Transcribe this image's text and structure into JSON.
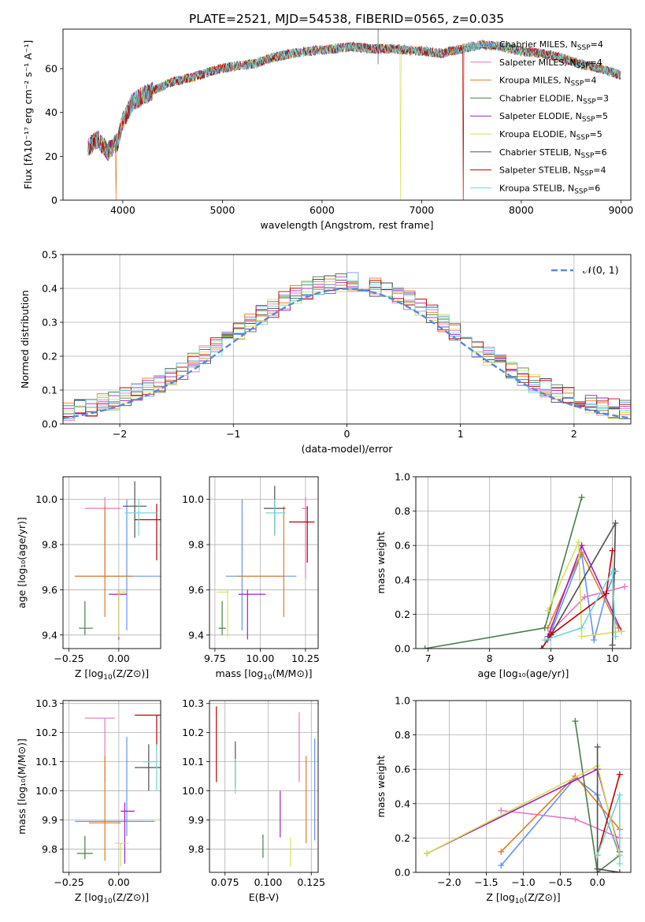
{
  "figure_title": "PLATE=2521, MJD=54538, FIBERID=0565, z=0.035",
  "model_colors": [
    "#6495ed",
    "#e377c2",
    "#e07b20",
    "#4a7d4a",
    "#a020c0",
    "#d4e157",
    "#505050",
    "#c00000",
    "#70d6d6"
  ],
  "chart_data": [
    {
      "id": "spectrum",
      "type": "line",
      "xlabel": "wavelength [Angstrom, rest frame]",
      "ylabel": "Flux [fλ10⁻¹⁷ erg cm⁻² s⁻¹ A⁻¹]",
      "xlim": [
        3400,
        9100
      ],
      "ylim": [
        0,
        78
      ],
      "xticks": [
        4000,
        5000,
        6000,
        7000,
        8000,
        9000
      ],
      "yticks": [
        0,
        20,
        40,
        60
      ],
      "legend_position": "right",
      "series": [
        {
          "name": "Chabrier MILES, N_SSP=4",
          "label_main": "Chabrier MILES, N",
          "label_sub": "SSP",
          "label_end": "=4"
        },
        {
          "name": "Salpeter MILES, N_SSP=4",
          "label_main": "Salpeter MILES, N",
          "label_sub": "SSP",
          "label_end": "=4"
        },
        {
          "name": "Kroupa MILES, N_SSP=4",
          "label_main": "Kroupa MILES, N",
          "label_sub": "SSP",
          "label_end": "=4"
        },
        {
          "name": "Chabrier ELODIE, N_SSP=3",
          "label_main": "Chabrier ELODIE, N",
          "label_sub": "SSP",
          "label_end": "=3"
        },
        {
          "name": "Salpeter ELODIE, N_SSP=5",
          "label_main": "Salpeter ELODIE, N",
          "label_sub": "SSP",
          "label_end": "=5"
        },
        {
          "name": "Kroupa ELODIE, N_SSP=5",
          "label_main": "Kroupa ELODIE, N",
          "label_sub": "SSP",
          "label_end": "=5"
        },
        {
          "name": "Chabrier STELIB, N_SSP=6",
          "label_main": "Chabrier STELIB, N",
          "label_sub": "SSP",
          "label_end": "=6"
        },
        {
          "name": "Salpeter STELIB, N_SSP=4",
          "label_main": "Salpeter STELIB, N",
          "label_sub": "SSP",
          "label_end": "=4"
        },
        {
          "name": "Kroupa STELIB, N_SSP=6",
          "label_main": "Kroupa STELIB, N",
          "label_sub": "SSP",
          "label_end": "=6"
        }
      ],
      "continuum": [
        [
          3650,
          24
        ],
        [
          3750,
          28
        ],
        [
          3850,
          22
        ],
        [
          3950,
          27
        ],
        [
          4000,
          36
        ],
        [
          4100,
          45
        ],
        [
          4300,
          50
        ],
        [
          4500,
          54
        ],
        [
          4700,
          56
        ],
        [
          4900,
          59
        ],
        [
          5100,
          61
        ],
        [
          5300,
          62
        ],
        [
          5500,
          65
        ],
        [
          5700,
          67
        ],
        [
          5900,
          68
        ],
        [
          6100,
          69
        ],
        [
          6300,
          70
        ],
        [
          6500,
          69
        ],
        [
          6700,
          69
        ],
        [
          7000,
          68
        ],
        [
          7200,
          67
        ],
        [
          7400,
          69
        ],
        [
          7600,
          71
        ],
        [
          7800,
          70
        ],
        [
          8000,
          68
        ],
        [
          8200,
          67
        ],
        [
          8400,
          65
        ],
        [
          8600,
          62
        ],
        [
          8800,
          60
        ],
        [
          9000,
          57
        ]
      ],
      "dropouts": [
        {
          "x": 3930,
          "series": 2
        },
        {
          "x": 6790,
          "series": 5
        },
        {
          "x": 7420,
          "series": 7
        }
      ],
      "spike": {
        "x": 6563,
        "y": 78
      }
    },
    {
      "id": "residuals",
      "type": "histogram",
      "xlabel": "(data-model)/error",
      "ylabel": "Normed distribution",
      "xlim": [
        -2.5,
        2.5
      ],
      "ylim": [
        0,
        0.5
      ],
      "xticks": [
        -2,
        -1,
        0,
        1,
        2
      ],
      "yticks": [
        0,
        0.1,
        0.2,
        0.3,
        0.4,
        0.5
      ],
      "bin_width": 0.1,
      "reference": {
        "name": "N(0,1)",
        "label": "𝒩(0, 1)",
        "mu": 0,
        "sigma": 1
      },
      "legend_position": "top-right"
    },
    {
      "id": "age-vs-Z",
      "type": "errorbar",
      "xlabel_main": "Z [log",
      "xlabel_sub": "10",
      "xlabel_end": "(Z/Z⊙)]",
      "ylabel": "age  [log₁₀(age/yr)]",
      "xlim": [
        -0.28,
        0.21
      ],
      "ylim": [
        9.34,
        10.1
      ],
      "xticks": [
        -0.25,
        0.0
      ],
      "yticks": [
        9.4,
        9.6,
        9.8,
        10.0
      ],
      "points": [
        {
          "x": 0.04,
          "y": 9.66,
          "xerr": [
            0.26,
            0.19
          ],
          "yerr": [
            0.24,
            0.34
          ]
        },
        {
          "x": -0.07,
          "y": 9.96,
          "xerr": [
            0.1,
            0.08
          ],
          "yerr": [
            0.31,
            0.05
          ]
        },
        {
          "x": -0.07,
          "y": 9.66,
          "xerr": [
            0.15,
            0.14
          ],
          "yerr": [
            0.18,
            0.31
          ]
        },
        {
          "x": -0.17,
          "y": 9.43,
          "xerr": [
            0.03,
            0.04
          ],
          "yerr": [
            0.03,
            0.12
          ]
        },
        {
          "x": 0.0,
          "y": 9.58,
          "xerr": [
            0.05,
            0.04
          ],
          "yerr": [
            0.2,
            0.02
          ]
        },
        {
          "x": 0.0,
          "y": 9.59,
          "xerr": [
            0.01,
            0.04
          ],
          "yerr": [
            0.2,
            0.01
          ]
        },
        {
          "x": 0.08,
          "y": 9.97,
          "xerr": [
            0.06,
            0.06
          ],
          "yerr": [
            0.14,
            0.11
          ]
        },
        {
          "x": 0.19,
          "y": 9.91,
          "xerr": [
            0.11,
            0.02
          ],
          "yerr": [
            0.18,
            0.07
          ]
        },
        {
          "x": 0.1,
          "y": 9.94,
          "xerr": [
            0.07,
            0.09
          ],
          "yerr": [
            0.1,
            0.06
          ]
        }
      ]
    },
    {
      "id": "age-vs-mass",
      "type": "errorbar",
      "xlabel_main": "mass [log",
      "xlabel_sub": "10",
      "xlabel_end": "(M/M⊙)]",
      "xlim": [
        9.72,
        10.32
      ],
      "ylim": [
        9.34,
        10.1
      ],
      "xticks": [
        9.75,
        10.0,
        10.25
      ],
      "yticks": [
        9.4,
        9.6,
        9.8,
        10.0
      ],
      "points": [
        {
          "x": 9.9,
          "y": 9.66,
          "xerr": [
            0.09,
            0.3
          ],
          "yerr": [
            0.24,
            0.34
          ]
        },
        {
          "x": 10.25,
          "y": 9.96,
          "xerr": [
            0.02,
            0.01
          ],
          "yerr": [
            0.31,
            0.05
          ]
        },
        {
          "x": 10.13,
          "y": 9.66,
          "xerr": [
            0.26,
            0.0
          ],
          "yerr": [
            0.18,
            0.31
          ]
        },
        {
          "x": 9.79,
          "y": 9.43,
          "xerr": [
            0.02,
            0.02
          ],
          "yerr": [
            0.03,
            0.12
          ]
        },
        {
          "x": 9.93,
          "y": 9.58,
          "xerr": [
            0.05,
            0.1
          ],
          "yerr": [
            0.2,
            0.02
          ]
        },
        {
          "x": 9.82,
          "y": 9.59,
          "xerr": [
            0.06,
            0.0
          ],
          "yerr": [
            0.2,
            0.01
          ]
        },
        {
          "x": 10.08,
          "y": 9.96,
          "xerr": [
            0.06,
            0.06
          ],
          "yerr": [
            0.12,
            0.1
          ]
        },
        {
          "x": 10.26,
          "y": 9.9,
          "xerr": [
            0.1,
            0.04
          ],
          "yerr": [
            0.18,
            0.07
          ]
        },
        {
          "x": 10.08,
          "y": 9.94,
          "xerr": [
            0.05,
            0.06
          ],
          "yerr": [
            0.1,
            0.06
          ]
        }
      ]
    },
    {
      "id": "weight-vs-age",
      "type": "line",
      "xlabel": "age  [log₁₀(age/yr)]",
      "ylabel": "mass weight",
      "xlim": [
        6.8,
        10.3
      ],
      "ylim": [
        0,
        1
      ],
      "xticks": [
        7,
        8,
        9,
        10
      ],
      "yticks": [
        0.0,
        0.2,
        0.4,
        0.6,
        0.8,
        1.0
      ],
      "series": [
        [
          [
            8.95,
            0.05
          ],
          [
            9.5,
            0.55
          ],
          [
            9.7,
            0.05
          ],
          [
            9.9,
            0.32
          ],
          [
            10.05,
            0.45
          ]
        ],
        [
          [
            9.0,
            0.1
          ],
          [
            9.55,
            0.3
          ],
          [
            10.2,
            0.36
          ]
        ],
        [
          [
            8.95,
            0.12
          ],
          [
            9.5,
            0.56
          ],
          [
            10.1,
            0.12
          ]
        ],
        [
          [
            6.95,
            0.0
          ],
          [
            8.9,
            0.12
          ],
          [
            9.5,
            0.88
          ]
        ],
        [
          [
            8.95,
            0.07
          ],
          [
            9.5,
            0.6
          ],
          [
            10.15,
            0.1
          ]
        ],
        [
          [
            8.95,
            0.22
          ],
          [
            9.45,
            0.62
          ],
          [
            9.5,
            0.07
          ],
          [
            10.15,
            0.1
          ]
        ],
        [
          [
            8.85,
            0.0
          ],
          [
            9.0,
            0.08
          ],
          [
            10.05,
            0.73
          ],
          [
            10.0,
            0.02
          ]
        ],
        [
          [
            8.85,
            0.0
          ],
          [
            9.0,
            0.08
          ],
          [
            9.9,
            0.32
          ],
          [
            10.0,
            0.57
          ]
        ],
        [
          [
            8.9,
            0.05
          ],
          [
            9.5,
            0.12
          ],
          [
            10.0,
            0.45
          ],
          [
            10.05,
            0.07
          ]
        ]
      ]
    },
    {
      "id": "mass-vs-Z",
      "type": "errorbar",
      "xlabel_main": "Z [log",
      "xlabel_sub": "10",
      "xlabel_end": "(Z/Z⊙)]",
      "ylabel": "mass [log₁₀(M/M⊙)]",
      "xlim": [
        -0.28,
        0.21
      ],
      "ylim": [
        9.72,
        10.31
      ],
      "xticks": [
        -0.25,
        0.0
      ],
      "yticks": [
        9.8,
        9.9,
        10.0,
        10.1,
        10.2,
        10.3
      ],
      "points": [
        {
          "x": 0.04,
          "y": 9.895,
          "xerr": [
            0.26,
            0.14
          ],
          "yerr": [
            0.05,
            0.29
          ]
        },
        {
          "x": -0.07,
          "y": 10.25,
          "xerr": [
            0.1,
            0.05
          ],
          "yerr": [
            0.22,
            0.0
          ]
        },
        {
          "x": -0.07,
          "y": 9.89,
          "xerr": [
            0.08,
            0.08
          ],
          "yerr": [
            0.13,
            0.23
          ]
        },
        {
          "x": -0.17,
          "y": 9.785,
          "xerr": [
            0.04,
            0.04
          ],
          "yerr": [
            0.02,
            0.06
          ]
        },
        {
          "x": 0.03,
          "y": 9.93,
          "xerr": [
            0.02,
            0.05
          ],
          "yerr": [
            0.18,
            0.03
          ]
        },
        {
          "x": 0.01,
          "y": 9.82,
          "xerr": [
            0.03,
            0.04
          ],
          "yerr": [
            0.08,
            0.0
          ]
        },
        {
          "x": 0.15,
          "y": 10.08,
          "xerr": [
            0.07,
            0.06
          ],
          "yerr": [
            0.08,
            0.08
          ]
        },
        {
          "x": 0.19,
          "y": 10.26,
          "xerr": [
            0.11,
            0.02
          ],
          "yerr": [
            0.12,
            0.0
          ]
        },
        {
          "x": 0.19,
          "y": 10.1,
          "xerr": [
            0.07,
            0.0
          ],
          "yerr": [
            0.1,
            0.06
          ]
        }
      ]
    },
    {
      "id": "mass-vs-EBV",
      "type": "errorbar",
      "xlabel": "E(B-V)",
      "xlim": [
        0.066,
        0.129
      ],
      "ylim": [
        9.72,
        10.31
      ],
      "xticks": [
        0.075,
        0.1,
        0.125
      ],
      "yticks": [
        9.8,
        9.9,
        10.0,
        10.1,
        10.2,
        10.3
      ],
      "points": [
        {
          "x": 0.127,
          "y": 10.0,
          "xerr": [
            0,
            0
          ],
          "yerr": [
            0.17,
            0.18
          ]
        },
        {
          "x": 0.118,
          "y": 10.15,
          "xerr": [
            0,
            0
          ],
          "yerr": [
            0.12,
            0.12
          ]
        },
        {
          "x": 0.122,
          "y": 9.97,
          "xerr": [
            0,
            0
          ],
          "yerr": [
            0.15,
            0.15
          ]
        },
        {
          "x": 0.097,
          "y": 9.8,
          "xerr": [
            0,
            0
          ],
          "yerr": [
            0.03,
            0.05
          ]
        },
        {
          "x": 0.107,
          "y": 9.92,
          "xerr": [
            0,
            0
          ],
          "yerr": [
            0.08,
            0.08
          ]
        },
        {
          "x": 0.113,
          "y": 9.79,
          "xerr": [
            0,
            0
          ],
          "yerr": [
            0.05,
            0.05
          ]
        },
        {
          "x": 0.081,
          "y": 10.09,
          "xerr": [
            0,
            0
          ],
          "yerr": [
            0.08,
            0.08
          ]
        },
        {
          "x": 0.07,
          "y": 10.16,
          "xerr": [
            0,
            0
          ],
          "yerr": [
            0.13,
            0.13
          ]
        },
        {
          "x": 0.081,
          "y": 10.05,
          "xerr": [
            0,
            0
          ],
          "yerr": [
            0.06,
            0.06
          ]
        }
      ]
    },
    {
      "id": "weight-vs-Z",
      "type": "line",
      "xlabel_main": "Z [log",
      "xlabel_sub": "10",
      "xlabel_end": "(Z/Z⊙)]",
      "ylabel": "mass weight",
      "xlim": [
        -2.45,
        0.45
      ],
      "ylim": [
        0,
        1
      ],
      "xticks": [
        -2.0,
        -1.5,
        -1.0,
        -0.5,
        0.0
      ],
      "yticks": [
        0.0,
        0.2,
        0.4,
        0.6,
        0.8,
        1.0
      ],
      "series": [
        [
          [
            -1.3,
            0.04
          ],
          [
            -0.3,
            0.55
          ],
          [
            0.0,
            0.45
          ],
          [
            0.3,
            0.1
          ]
        ],
        [
          [
            -1.3,
            0.36
          ],
          [
            -0.3,
            0.31
          ],
          [
            0.3,
            0.2
          ]
        ],
        [
          [
            -1.3,
            0.12
          ],
          [
            -0.3,
            0.56
          ],
          [
            0.3,
            0.25
          ]
        ],
        [
          [
            -0.3,
            0.88
          ],
          [
            0.0,
            0.0
          ],
          [
            0.3,
            0.1
          ]
        ],
        [
          [
            -2.3,
            0.11
          ],
          [
            0.0,
            0.6
          ],
          [
            0.3,
            0.12
          ]
        ],
        [
          [
            -2.3,
            0.11
          ],
          [
            0.0,
            0.62
          ],
          [
            0.3,
            0.1
          ]
        ],
        [
          [
            0.0,
            0.73
          ],
          [
            0.0,
            0.02
          ],
          [
            0.3,
            0.0
          ]
        ],
        [
          [
            0.0,
            0.1
          ],
          [
            0.3,
            0.57
          ]
        ],
        [
          [
            0.0,
            0.1
          ],
          [
            0.3,
            0.45
          ],
          [
            0.3,
            0.05
          ]
        ]
      ]
    }
  ]
}
